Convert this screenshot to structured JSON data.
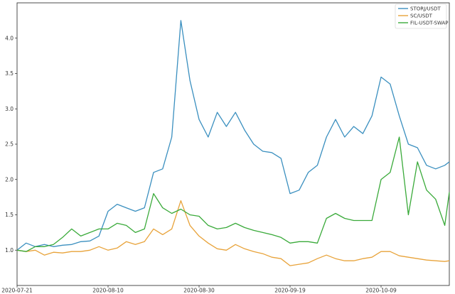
{
  "chart_data": {
    "type": "line",
    "title": "",
    "xlabel": "",
    "ylabel": "",
    "x_dates": [
      "2020-07-21",
      "2020-07-23",
      "2020-07-25",
      "2020-07-27",
      "2020-07-29",
      "2020-07-31",
      "2020-08-02",
      "2020-08-04",
      "2020-08-06",
      "2020-08-08",
      "2020-08-10",
      "2020-08-12",
      "2020-08-14",
      "2020-08-16",
      "2020-08-18",
      "2020-08-20",
      "2020-08-22",
      "2020-08-24",
      "2020-08-26",
      "2020-08-28",
      "2020-08-30",
      "2020-09-01",
      "2020-09-03",
      "2020-09-05",
      "2020-09-07",
      "2020-09-09",
      "2020-09-11",
      "2020-09-13",
      "2020-09-15",
      "2020-09-17",
      "2020-09-19",
      "2020-09-21",
      "2020-09-23",
      "2020-09-25",
      "2020-09-27",
      "2020-09-29",
      "2020-10-01",
      "2020-10-03",
      "2020-10-05",
      "2020-10-07",
      "2020-10-09",
      "2020-10-11",
      "2020-10-13",
      "2020-10-15",
      "2020-10-17",
      "2020-10-19",
      "2020-10-21",
      "2020-10-23",
      "2020-10-24"
    ],
    "x_ticks": [
      "2020-07-21",
      "2020-08-10",
      "2020-08-30",
      "2020-09-19",
      "2020-10-09"
    ],
    "y_ticks": [
      "1.0",
      "1.5",
      "2.0",
      "2.5",
      "3.0",
      "3.5",
      "4.0"
    ],
    "ylim": [
      0.5,
      4.5
    ],
    "grid": false,
    "legend_position": "top-right",
    "series": [
      {
        "name": "STORJ/USDT",
        "color": "#3a8fbf",
        "values": [
          1.0,
          1.1,
          1.05,
          1.08,
          1.05,
          1.07,
          1.08,
          1.12,
          1.13,
          1.2,
          1.55,
          1.65,
          1.6,
          1.55,
          1.6,
          2.1,
          2.15,
          2.6,
          4.25,
          3.4,
          2.85,
          2.6,
          2.95,
          2.75,
          2.95,
          2.7,
          2.5,
          2.4,
          2.38,
          2.3,
          1.8,
          1.85,
          2.1,
          2.2,
          2.6,
          2.85,
          2.6,
          2.75,
          2.65,
          2.9,
          3.45,
          3.35,
          2.9,
          2.5,
          2.45,
          2.2,
          2.15,
          2.2,
          2.25
        ]
      },
      {
        "name": "SC/USDT",
        "color": "#e8a33a",
        "values": [
          1.0,
          0.98,
          1.0,
          0.93,
          0.97,
          0.96,
          0.98,
          0.98,
          1.0,
          1.05,
          1.0,
          1.03,
          1.12,
          1.08,
          1.12,
          1.3,
          1.22,
          1.3,
          1.7,
          1.35,
          1.2,
          1.1,
          1.02,
          1.0,
          1.08,
          1.02,
          0.98,
          0.95,
          0.9,
          0.88,
          0.78,
          0.8,
          0.82,
          0.88,
          0.93,
          0.88,
          0.85,
          0.85,
          0.88,
          0.9,
          0.98,
          0.98,
          0.92,
          0.9,
          0.88,
          0.86,
          0.85,
          0.84,
          0.85
        ]
      },
      {
        "name": "FIL-USDT-SWAP",
        "color": "#3aaa3a",
        "values": [
          1.0,
          0.98,
          1.05,
          1.05,
          1.08,
          1.18,
          1.3,
          1.2,
          1.25,
          1.3,
          1.3,
          1.38,
          1.35,
          1.25,
          1.3,
          1.8,
          1.6,
          1.52,
          1.58,
          1.5,
          1.48,
          1.35,
          1.3,
          1.32,
          1.38,
          1.32,
          1.28,
          1.25,
          1.22,
          1.18,
          1.1,
          1.12,
          1.12,
          1.1,
          1.45,
          1.52,
          1.45,
          1.42,
          1.42,
          1.42,
          2.0,
          2.1,
          2.6,
          1.5,
          2.25,
          1.85,
          1.72,
          1.35,
          1.82
        ]
      }
    ]
  }
}
